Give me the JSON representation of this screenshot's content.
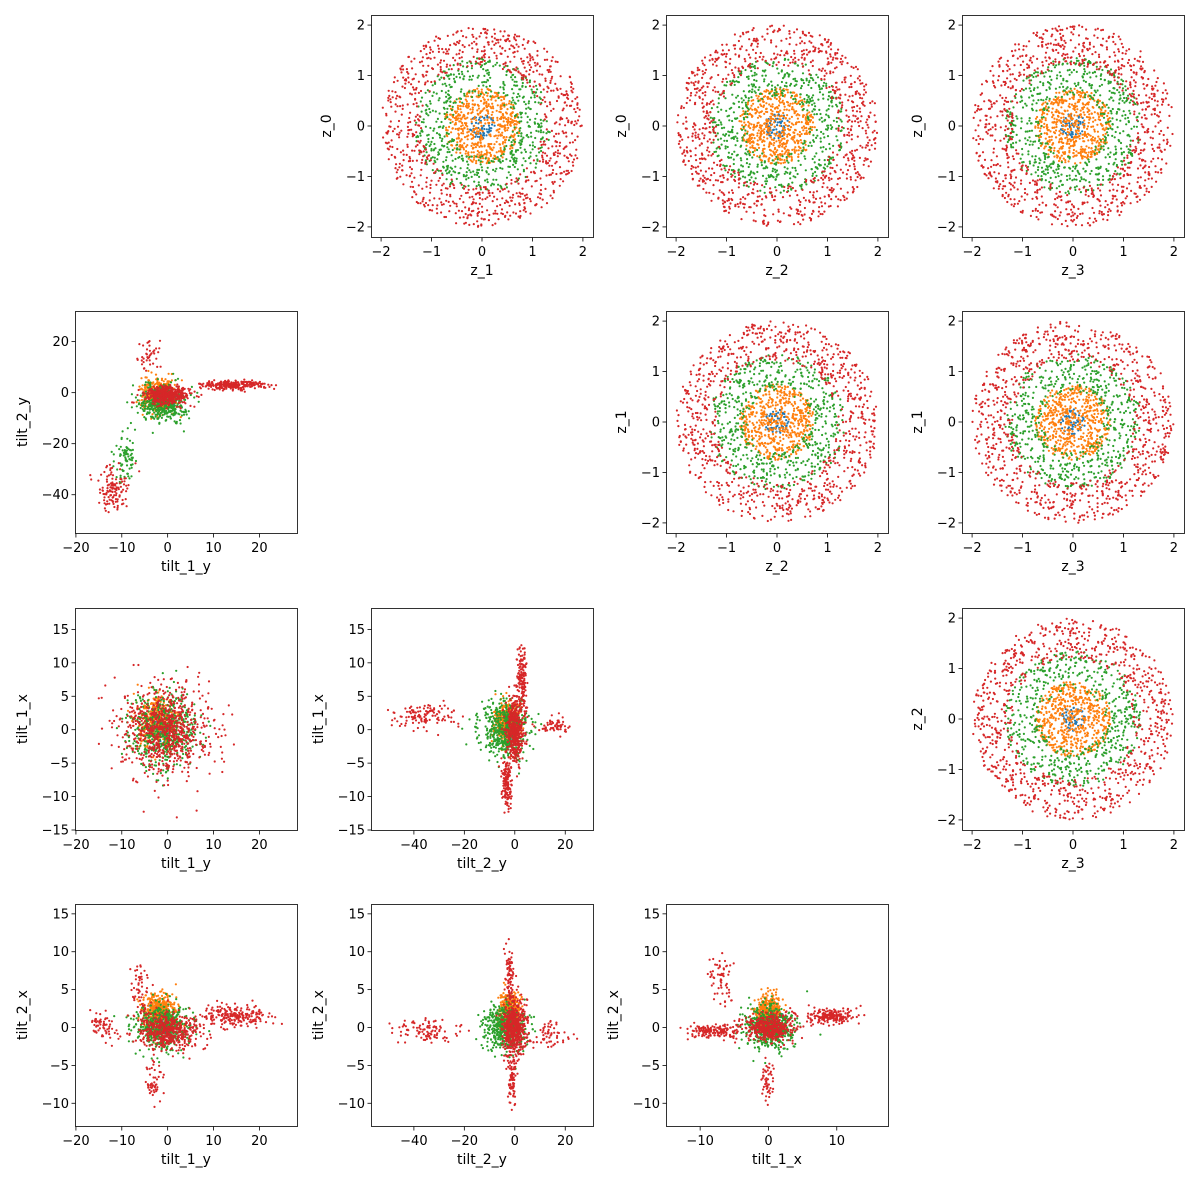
{
  "colors": {
    "series": [
      "#1f77b4",
      "#ff7f0e",
      "#2ca02c",
      "#d62728"
    ],
    "axes": "#000000",
    "background": "#ffffff"
  },
  "chart_data": [
    {
      "type": "scatter",
      "panel": [
        0,
        1
      ],
      "xlabel": "z_1",
      "ylabel": "z_0",
      "xlim": [
        -2.2,
        2.2
      ],
      "ylim": [
        -2.2,
        2.2
      ],
      "xticks": [
        -2,
        -1,
        0,
        1,
        2
      ],
      "yticks": [
        -2,
        -1,
        0,
        1,
        2
      ],
      "data_model": "annulus",
      "series_radius_bands": [
        [
          0,
          0.25
        ],
        [
          0,
          0.75
        ],
        [
          0.6,
          1.35
        ],
        [
          1.2,
          2.0
        ]
      ],
      "series_point_counts": [
        60,
        550,
        600,
        900
      ]
    },
    {
      "type": "scatter",
      "panel": [
        0,
        2
      ],
      "xlabel": "z_2",
      "ylabel": "z_0",
      "xlim": [
        -2.2,
        2.2
      ],
      "ylim": [
        -2.2,
        2.2
      ],
      "xticks": [
        -2,
        -1,
        0,
        1,
        2
      ],
      "yticks": [
        -2,
        -1,
        0,
        1,
        2
      ],
      "data_model": "annulus",
      "series_radius_bands": [
        [
          0,
          0.25
        ],
        [
          0,
          0.75
        ],
        [
          0.6,
          1.35
        ],
        [
          1.2,
          2.0
        ]
      ],
      "series_point_counts": [
        60,
        550,
        600,
        900
      ]
    },
    {
      "type": "scatter",
      "panel": [
        0,
        3
      ],
      "xlabel": "z_3",
      "ylabel": "z_0",
      "xlim": [
        -2.2,
        2.2
      ],
      "ylim": [
        -2.2,
        2.2
      ],
      "xticks": [
        -2,
        -1,
        0,
        1,
        2
      ],
      "yticks": [
        -2,
        -1,
        0,
        1,
        2
      ],
      "data_model": "annulus",
      "series_radius_bands": [
        [
          0,
          0.25
        ],
        [
          0,
          0.75
        ],
        [
          0.6,
          1.35
        ],
        [
          1.2,
          2.0
        ]
      ],
      "series_point_counts": [
        60,
        550,
        600,
        900
      ]
    },
    {
      "type": "scatter",
      "panel": [
        1,
        2
      ],
      "xlabel": "z_2",
      "ylabel": "z_1",
      "xlim": [
        -2.2,
        2.2
      ],
      "ylim": [
        -2.2,
        2.2
      ],
      "xticks": [
        -2,
        -1,
        0,
        1,
        2
      ],
      "yticks": [
        -2,
        -1,
        0,
        1,
        2
      ],
      "data_model": "annulus",
      "series_radius_bands": [
        [
          0,
          0.25
        ],
        [
          0,
          0.75
        ],
        [
          0.6,
          1.35
        ],
        [
          1.2,
          2.0
        ]
      ],
      "series_point_counts": [
        60,
        550,
        600,
        900
      ]
    },
    {
      "type": "scatter",
      "panel": [
        1,
        3
      ],
      "xlabel": "z_3",
      "ylabel": "z_1",
      "xlim": [
        -2.2,
        2.2
      ],
      "ylim": [
        -2.2,
        2.2
      ],
      "xticks": [
        -2,
        -1,
        0,
        1,
        2
      ],
      "yticks": [
        -2,
        -1,
        0,
        1,
        2
      ],
      "data_model": "annulus",
      "series_radius_bands": [
        [
          0,
          0.25
        ],
        [
          0,
          0.75
        ],
        [
          0.6,
          1.35
        ],
        [
          1.2,
          2.0
        ]
      ],
      "series_point_counts": [
        60,
        550,
        600,
        900
      ]
    },
    {
      "type": "scatter",
      "panel": [
        2,
        3
      ],
      "xlabel": "z_3",
      "ylabel": "z_2",
      "xlim": [
        -2.2,
        2.2
      ],
      "ylim": [
        -2.2,
        2.2
      ],
      "xticks": [
        -2,
        -1,
        0,
        1,
        2
      ],
      "yticks": [
        -2,
        -1,
        0,
        1,
        2
      ],
      "data_model": "annulus",
      "series_radius_bands": [
        [
          0,
          0.25
        ],
        [
          0,
          0.75
        ],
        [
          0.6,
          1.35
        ],
        [
          1.2,
          2.0
        ]
      ],
      "series_point_counts": [
        60,
        550,
        600,
        900
      ]
    },
    {
      "type": "scatter",
      "panel": [
        1,
        0
      ],
      "xlabel": "tilt_1_y",
      "ylabel": "tilt_2_y",
      "xlim": [
        -20.2,
        28.2
      ],
      "ylim": [
        -55,
        32
      ],
      "xticks": [
        -20,
        -10,
        0,
        10,
        20
      ],
      "yticks": [
        -40,
        -20,
        0,
        20
      ],
      "data_model": "clusters",
      "series": [
        {
          "clusters": [
            {
              "center": [
                -1,
                -1
              ],
              "spread": [
                1.5,
                3
              ],
              "n": 50
            }
          ]
        },
        {
          "clusters": [
            {
              "center": [
                -2,
                -1
              ],
              "spread": [
                3,
                5
              ],
              "n": 450
            }
          ]
        },
        {
          "clusters": [
            {
              "center": [
                -1,
                -4
              ],
              "spread": [
                4,
                6
              ],
              "n": 420
            },
            {
              "center": [
                -9,
                -25
              ],
              "spread": [
                2,
                8
              ],
              "n": 80
            }
          ]
        },
        {
          "clusters": [
            {
              "center": [
                0,
                -1
              ],
              "spread": [
                4,
                3
              ],
              "n": 450
            },
            {
              "center": [
                14,
                3
              ],
              "spread": [
                6,
                1.5
              ],
              "n": 250
            },
            {
              "center": [
                -12,
                -38
              ],
              "spread": [
                3,
                7
              ],
              "n": 120
            },
            {
              "center": [
                -4,
                14
              ],
              "spread": [
                2,
                6
              ],
              "n": 40
            }
          ]
        }
      ]
    },
    {
      "type": "scatter",
      "panel": [
        2,
        0
      ],
      "xlabel": "tilt_1_y",
      "ylabel": "tilt_1_x",
      "xlim": [
        -20.2,
        28.2
      ],
      "ylim": [
        -15,
        18.2
      ],
      "xticks": [
        -20,
        -10,
        0,
        10,
        20
      ],
      "yticks": [
        -15,
        -10,
        -5,
        0,
        5,
        10,
        15
      ],
      "data_model": "clusters",
      "series": [
        {
          "clusters": [
            {
              "center": [
                -1,
                0.5
              ],
              "spread": [
                1.5,
                1.5
              ],
              "n": 60
            }
          ]
        },
        {
          "clusters": [
            {
              "center": [
                -2,
                1
              ],
              "spread": [
                3.5,
                3
              ],
              "n": 450
            }
          ]
        },
        {
          "clusters": [
            {
              "center": [
                -1,
                0
              ],
              "spread": [
                6,
                4.5
              ],
              "n": 550
            }
          ]
        },
        {
          "clusters": [
            {
              "center": [
                0,
                0
              ],
              "spread": [
                8,
                5.5
              ],
              "n": 800
            }
          ]
        }
      ]
    },
    {
      "type": "scatter",
      "panel": [
        2,
        1
      ],
      "xlabel": "tilt_2_y",
      "ylabel": "tilt_1_x",
      "xlim": [
        -57,
        31
      ],
      "ylim": [
        -15,
        18.2
      ],
      "xticks": [
        -40,
        -20,
        0,
        20
      ],
      "yticks": [
        -15,
        -10,
        -5,
        0,
        5,
        10,
        15
      ],
      "data_model": "clusters",
      "series": [
        {
          "clusters": [
            {
              "center": [
                -2,
                0.5
              ],
              "spread": [
                2,
                1.5
              ],
              "n": 60
            }
          ]
        },
        {
          "clusters": [
            {
              "center": [
                -3,
                1
              ],
              "spread": [
                4,
                2.5
              ],
              "n": 450
            }
          ]
        },
        {
          "clusters": [
            {
              "center": [
                -4,
                0
              ],
              "spread": [
                8,
                3.5
              ],
              "n": 500
            }
          ]
        },
        {
          "clusters": [
            {
              "center": [
                0,
                0
              ],
              "spread": [
                3,
                4
              ],
              "n": 450
            },
            {
              "center": [
                3,
                8
              ],
              "spread": [
                1.5,
                4
              ],
              "n": 150
            },
            {
              "center": [
                -3,
                -8
              ],
              "spread": [
                1.5,
                3
              ],
              "n": 150
            },
            {
              "center": [
                -35,
                2
              ],
              "spread": [
                10,
                1.5
              ],
              "n": 120
            },
            {
              "center": [
                15,
                0.5
              ],
              "spread": [
                6,
                1
              ],
              "n": 60
            }
          ]
        }
      ]
    },
    {
      "type": "scatter",
      "panel": [
        3,
        0
      ],
      "xlabel": "tilt_1_y",
      "ylabel": "tilt_2_x",
      "xlim": [
        -20.2,
        28.2
      ],
      "ylim": [
        -13,
        16.3
      ],
      "xticks": [
        -20,
        -10,
        0,
        10,
        20
      ],
      "yticks": [
        -10,
        -5,
        0,
        5,
        10,
        15
      ],
      "data_model": "clusters",
      "series": [
        {
          "clusters": [
            {
              "center": [
                -1,
                1
              ],
              "spread": [
                1.5,
                1.5
              ],
              "n": 60
            }
          ]
        },
        {
          "clusters": [
            {
              "center": [
                -2,
                2
              ],
              "spread": [
                3,
                2
              ],
              "n": 450
            }
          ]
        },
        {
          "clusters": [
            {
              "center": [
                -1,
                0
              ],
              "spread": [
                5,
                2.5
              ],
              "n": 500
            }
          ]
        },
        {
          "clusters": [
            {
              "center": [
                0,
                -0.5
              ],
              "spread": [
                6,
                2
              ],
              "n": 500
            },
            {
              "center": [
                15,
                1.5
              ],
              "spread": [
                6,
                1.2
              ],
              "n": 220
            },
            {
              "center": [
                -6,
                6
              ],
              "spread": [
                2,
                3
              ],
              "n": 50
            },
            {
              "center": [
                -3,
                -7
              ],
              "spread": [
                2,
                2.5
              ],
              "n": 50
            },
            {
              "center": [
                -14,
                0
              ],
              "spread": [
                3,
                1.5
              ],
              "n": 60
            }
          ]
        }
      ]
    },
    {
      "type": "scatter",
      "panel": [
        3,
        1
      ],
      "xlabel": "tilt_2_y",
      "ylabel": "tilt_2_x",
      "xlim": [
        -57,
        31
      ],
      "ylim": [
        -13,
        16.3
      ],
      "xticks": [
        -40,
        -20,
        0,
        20
      ],
      "yticks": [
        -10,
        -5,
        0,
        5,
        10,
        15
      ],
      "data_model": "clusters",
      "series": [
        {
          "clusters": [
            {
              "center": [
                -1,
                1.5
              ],
              "spread": [
                2,
                1.5
              ],
              "n": 60
            }
          ]
        },
        {
          "clusters": [
            {
              "center": [
                -2,
                2
              ],
              "spread": [
                3,
                2
              ],
              "n": 450
            }
          ]
        },
        {
          "clusters": [
            {
              "center": [
                -4,
                0
              ],
              "spread": [
                7,
                2.5
              ],
              "n": 500
            }
          ]
        },
        {
          "clusters": [
            {
              "center": [
                0,
                0
              ],
              "spread": [
                4,
                3
              ],
              "n": 550
            },
            {
              "center": [
                -2,
                7
              ],
              "spread": [
                1.5,
                3
              ],
              "n": 80
            },
            {
              "center": [
                -1,
                -7
              ],
              "spread": [
                1.5,
                2.5
              ],
              "n": 80
            },
            {
              "center": [
                -35,
                -0.5
              ],
              "spread": [
                10,
                1.2
              ],
              "n": 100
            },
            {
              "center": [
                14,
                -1
              ],
              "spread": [
                7,
                1.5
              ],
              "n": 60
            }
          ]
        }
      ]
    },
    {
      "type": "scatter",
      "panel": [
        3,
        2
      ],
      "xlabel": "tilt_1_x",
      "ylabel": "tilt_2_x",
      "xlim": [
        -15,
        17.5
      ],
      "ylim": [
        -13,
        16.3
      ],
      "xticks": [
        -10,
        0,
        10
      ],
      "yticks": [
        -10,
        -5,
        0,
        5,
        10,
        15
      ],
      "data_model": "clusters",
      "series": [
        {
          "clusters": [
            {
              "center": [
                0,
                1
              ],
              "spread": [
                1,
                1.5
              ],
              "n": 60
            }
          ]
        },
        {
          "clusters": [
            {
              "center": [
                0,
                2
              ],
              "spread": [
                1.5,
                2
              ],
              "n": 450
            }
          ]
        },
        {
          "clusters": [
            {
              "center": [
                0,
                0
              ],
              "spread": [
                3,
                2.5
              ],
              "n": 500
            }
          ]
        },
        {
          "clusters": [
            {
              "center": [
                0,
                0
              ],
              "spread": [
                3,
                1.5
              ],
              "n": 450
            },
            {
              "center": [
                9,
                1.5
              ],
              "spread": [
                3,
                0.9
              ],
              "n": 200
            },
            {
              "center": [
                -8,
                -0.5
              ],
              "spread": [
                3,
                0.7
              ],
              "n": 150
            },
            {
              "center": [
                -7,
                6
              ],
              "spread": [
                2,
                3
              ],
              "n": 60
            },
            {
              "center": [
                0,
                -7
              ],
              "spread": [
                0.8,
                2.5
              ],
              "n": 50
            }
          ]
        }
      ]
    }
  ]
}
